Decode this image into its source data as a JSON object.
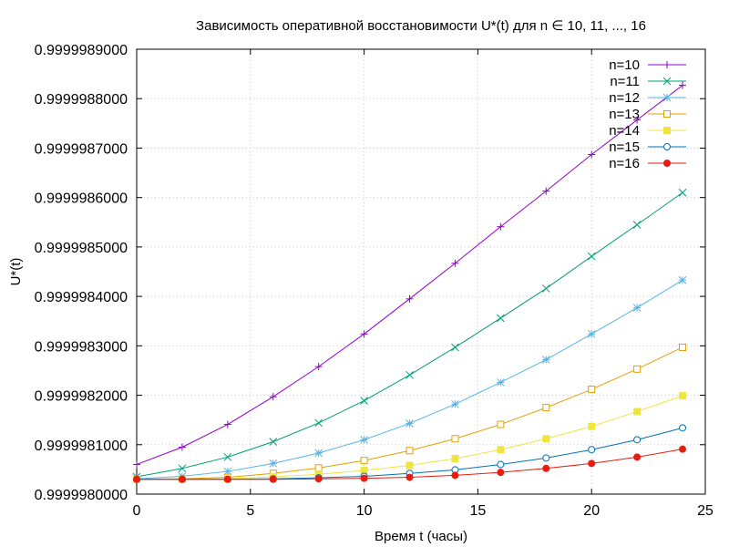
{
  "chart_data": {
    "type": "line",
    "title": "Зависимость оперативной восстановимости U*(t) для n ∈ 10, 11, ..., 16",
    "xlabel": "Время t (часы)",
    "ylabel": "U*(t)",
    "xlim": [
      0,
      25
    ],
    "ylim": [
      0.999998,
      0.9999989
    ],
    "x_ticks": [
      0,
      5,
      10,
      15,
      20,
      25
    ],
    "x_tick_labels": [
      "0",
      "5",
      "10",
      "15",
      "20",
      "25"
    ],
    "y_ticks": [
      0.999998,
      0.9999981,
      0.9999982,
      0.9999983,
      0.9999984,
      0.9999985,
      0.9999986,
      0.9999987,
      0.9999988,
      0.9999989
    ],
    "y_tick_labels": [
      "0.9999980000",
      "0.9999981000",
      "0.9999982000",
      "0.9999983000",
      "0.9999984000",
      "0.9999985000",
      "0.9999986000",
      "0.9999987000",
      "0.9999988000",
      "0.9999989000"
    ],
    "grid": true,
    "legend_position": "top-right",
    "x": [
      0,
      2,
      4,
      6,
      8,
      10,
      12,
      14,
      16,
      18,
      20,
      22,
      24
    ],
    "series": [
      {
        "name": "n=10",
        "color": "#9400d3",
        "marker": "plus",
        "values": [
          0.99999806,
          0.999998095,
          0.999998141,
          0.999998197,
          0.999998258,
          0.999998324,
          0.999998395,
          0.999998467,
          0.999998541,
          0.999998613,
          0.999998687,
          0.999998757,
          0.999998827
        ]
      },
      {
        "name": "n=11",
        "color": "#009e73",
        "marker": "cross",
        "values": [
          0.999998035,
          0.999998052,
          0.999998075,
          0.999998106,
          0.999998144,
          0.999998189,
          0.999998241,
          0.999998297,
          0.999998356,
          0.999998416,
          0.999998481,
          0.999998545,
          0.99999861
        ]
      },
      {
        "name": "n=12",
        "color": "#56b4e9",
        "marker": "star",
        "values": [
          0.999998031,
          0.999998036,
          0.999998046,
          0.999998062,
          0.999998083,
          0.99999811,
          0.999998143,
          0.999998182,
          0.999998226,
          0.999998272,
          0.999998324,
          0.999998377,
          0.999998433
        ]
      },
      {
        "name": "n=13",
        "color": "#e69f00",
        "marker": "square-open",
        "values": [
          0.99999803,
          0.999998031,
          0.999998034,
          0.999998042,
          0.999998053,
          0.999998068,
          0.999998088,
          0.999998112,
          0.999998141,
          0.999998175,
          0.999998212,
          0.999998253,
          0.999998297
        ]
      },
      {
        "name": "n=14",
        "color": "#f0e442",
        "marker": "square-filled",
        "values": [
          0.99999803,
          0.99999803,
          0.999998031,
          0.999998035,
          0.99999804,
          0.999998048,
          0.999998058,
          0.999998072,
          0.99999809,
          0.999998112,
          0.999998137,
          0.999998167,
          0.999998199
        ]
      },
      {
        "name": "n=15",
        "color": "#0072b2",
        "marker": "circle-open",
        "values": [
          0.99999803,
          0.99999803,
          0.99999803,
          0.999998031,
          0.999998033,
          0.999998036,
          0.999998042,
          0.999998049,
          0.99999806,
          0.999998073,
          0.99999809,
          0.99999811,
          0.999998134
        ]
      },
      {
        "name": "n=16",
        "color": "#e51e10",
        "marker": "circle-filled",
        "values": [
          0.99999803,
          0.99999803,
          0.99999803,
          0.99999803,
          0.999998031,
          0.999998032,
          0.999998034,
          0.999998038,
          0.999998044,
          0.999998052,
          0.999998062,
          0.999998075,
          0.999998091
        ]
      }
    ]
  }
}
